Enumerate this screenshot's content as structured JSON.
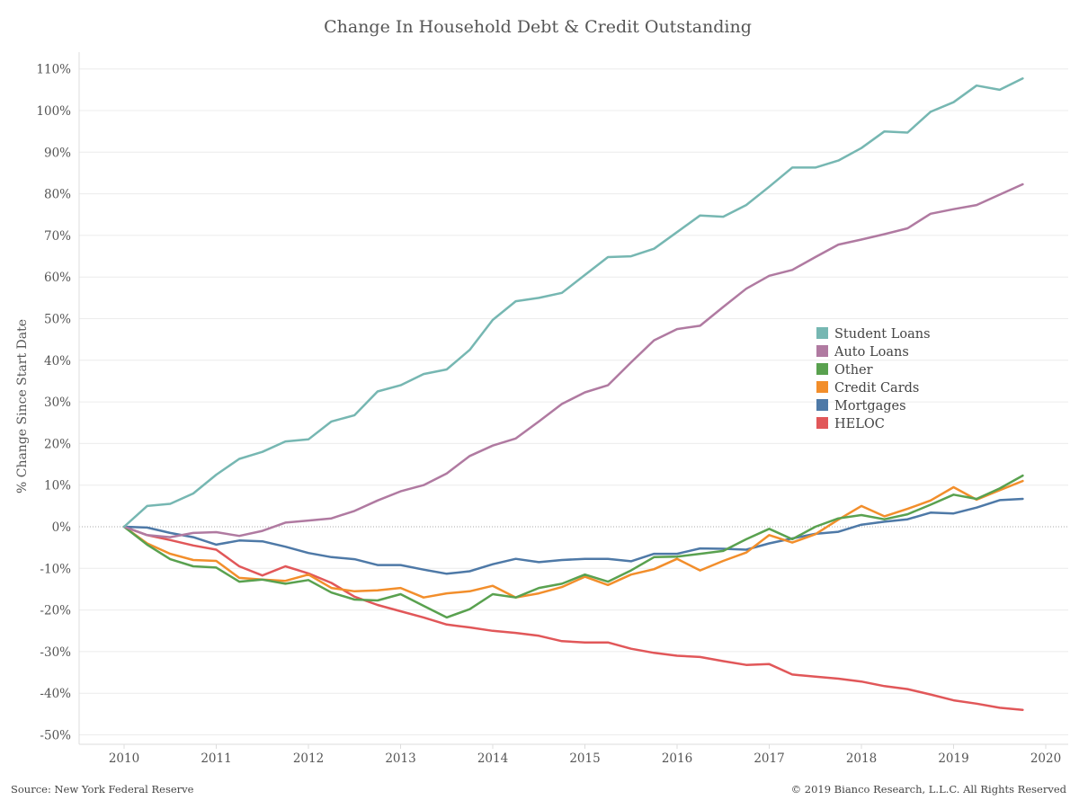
{
  "footer": {
    "source": "Source: New York Federal Reserve",
    "copyright": "© 2019 Bianco Research, L.L.C. All Rights Reserved"
  },
  "chart_data": {
    "type": "line",
    "title": "Change In Household Debt & Credit Outstanding",
    "ylabel": "% Change Since Start Date",
    "xlabel": "",
    "xlim": [
      2010,
      2020
    ],
    "ylim": [
      -50,
      110
    ],
    "x_ticks": [
      "2010",
      "2011",
      "2012",
      "2013",
      "2014",
      "2015",
      "2016",
      "2017",
      "2018",
      "2019",
      "2020"
    ],
    "y_ticks": [
      "-50%",
      "-40%",
      "-30%",
      "-20%",
      "-10%",
      "0%",
      "10%",
      "20%",
      "30%",
      "40%",
      "50%",
      "60%",
      "70%",
      "80%",
      "90%",
      "100%",
      "110%"
    ],
    "grid": true,
    "legend_position": "right",
    "x": [
      2010.0,
      2010.25,
      2010.5,
      2010.75,
      2011.0,
      2011.25,
      2011.5,
      2011.75,
      2012.0,
      2012.25,
      2012.5,
      2012.75,
      2013.0,
      2013.25,
      2013.5,
      2013.75,
      2014.0,
      2014.25,
      2014.5,
      2014.75,
      2015.0,
      2015.25,
      2015.5,
      2015.75,
      2016.0,
      2016.25,
      2016.5,
      2016.75,
      2017.0,
      2017.25,
      2017.5,
      2017.75,
      2018.0,
      2018.25,
      2018.5,
      2018.75,
      2019.0,
      2019.25,
      2019.5,
      2019.75
    ],
    "series": [
      {
        "name": "Student Loans",
        "color": "#76b7b2",
        "values": [
          0,
          5,
          5.5,
          8,
          12.5,
          16.3,
          18,
          20.5,
          21,
          25.3,
          26.8,
          32.5,
          34,
          36.7,
          37.8,
          42.5,
          49.7,
          54.2,
          55,
          56.2,
          60.5,
          64.8,
          65,
          66.8,
          70.8,
          74.8,
          74.5,
          77.3,
          81.7,
          86.3,
          86.3,
          88,
          91,
          95,
          94.7,
          99.7,
          102,
          106,
          105,
          107.7
        ]
      },
      {
        "name": "Auto Loans",
        "color": "#b07aa1",
        "values": [
          0,
          -2,
          -2.5,
          -1.5,
          -1.3,
          -2.2,
          -1,
          1,
          1.5,
          2,
          3.8,
          6.3,
          8.5,
          10,
          12.8,
          17,
          19.5,
          21.2,
          25.3,
          29.5,
          32.3,
          34,
          39.5,
          44.8,
          47.5,
          48.3,
          52.8,
          57.2,
          60.3,
          61.7,
          64.8,
          67.8,
          69,
          70.3,
          71.7,
          75.2,
          76.3,
          77.3,
          79.8,
          82.3
        ]
      },
      {
        "name": "Other",
        "color": "#59a14f",
        "values": [
          0,
          -4.3,
          -7.8,
          -9.5,
          -9.8,
          -13.2,
          -12.7,
          -13.7,
          -12.8,
          -15.8,
          -17.5,
          -17.7,
          -16.2,
          -19,
          -21.8,
          -19.8,
          -16.2,
          -17,
          -14.7,
          -13.7,
          -11.5,
          -13.2,
          -10.5,
          -7.3,
          -7.2,
          -6.5,
          -5.8,
          -3,
          -0.5,
          -3,
          0,
          2,
          2.8,
          1.8,
          3,
          5.3,
          7.7,
          6.7,
          9.2,
          12.3
        ]
      },
      {
        "name": "Credit Cards",
        "color": "#f28e2b",
        "values": [
          0,
          -4,
          -6.5,
          -8,
          -8.2,
          -12.3,
          -12.7,
          -13,
          -11.5,
          -14.7,
          -15.5,
          -15.3,
          -14.7,
          -17,
          -16,
          -15.5,
          -14.2,
          -17,
          -16,
          -14.5,
          -12,
          -14,
          -11.5,
          -10.2,
          -7.7,
          -10.5,
          -8.2,
          -6.2,
          -2,
          -3.8,
          -1.8,
          1.7,
          5,
          2.5,
          4.3,
          6.3,
          9.5,
          6.5,
          8.8,
          11
        ]
      },
      {
        "name": "Mortgages",
        "color": "#4e79a7",
        "values": [
          0,
          -0.2,
          -1.5,
          -2.5,
          -4.3,
          -3.3,
          -3.5,
          -4.8,
          -6.3,
          -7.3,
          -7.8,
          -9.2,
          -9.2,
          -10.3,
          -11.3,
          -10.7,
          -9,
          -7.7,
          -8.5,
          -8,
          -7.7,
          -7.7,
          -8.3,
          -6.5,
          -6.5,
          -5.2,
          -5.3,
          -5.5,
          -4,
          -2.8,
          -1.7,
          -1.2,
          0.5,
          1.2,
          1.8,
          3.4,
          3.2,
          4.6,
          6.4,
          6.7
        ]
      },
      {
        "name": "HELOC",
        "color": "#e15759",
        "values": [
          0,
          -2,
          -3.2,
          -4.5,
          -5.5,
          -9.5,
          -11.7,
          -9.5,
          -11.2,
          -13.5,
          -16.8,
          -18.8,
          -20.3,
          -21.8,
          -23.5,
          -24.2,
          -25,
          -25.5,
          -26.2,
          -27.5,
          -27.8,
          -27.8,
          -29.3,
          -30.3,
          -31,
          -31.3,
          -32.3,
          -33.2,
          -33,
          -35.5,
          -36,
          -36.5,
          -37.2,
          -38.3,
          -39,
          -40.3,
          -41.7,
          -42.5,
          -43.5,
          -44
        ]
      }
    ]
  }
}
